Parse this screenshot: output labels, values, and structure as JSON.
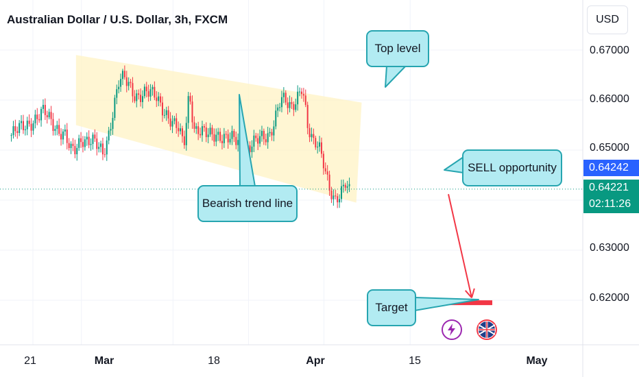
{
  "header": {
    "title": "Australian Dollar / U.S. Dollar, 3h, FXCM",
    "currency": "USD"
  },
  "price_scale": {
    "labels": [
      "0.67000",
      "0.66000",
      "0.65000",
      "0.63000",
      "0.62000"
    ],
    "last_price": "0.64242",
    "current_price": "0.64221",
    "countdown": "02:11:26",
    "colors": {
      "last_price_bg": "#2962ff",
      "current_price_bg": "#089981",
      "up": "#089981",
      "down": "#f23645"
    }
  },
  "time_scale": {
    "labels": [
      {
        "text": "21",
        "bold": false
      },
      {
        "text": "Mar",
        "bold": true
      },
      {
        "text": "18",
        "bold": false
      },
      {
        "text": "Apr",
        "bold": true
      },
      {
        "text": "15",
        "bold": false
      },
      {
        "text": "May",
        "bold": true
      }
    ]
  },
  "annotations": {
    "top_level": "Top level",
    "bearish_trend": "Bearish trend line",
    "sell": "SELL opportunity",
    "target": "Target",
    "channel_color": "#fff3c4",
    "callout_bg": "#b2ebf2",
    "callout_border": "#26a5b0",
    "arrow_color": "#f23645"
  },
  "events": [
    {
      "icon": "lightning-icon",
      "color": "#9c27b0"
    },
    {
      "icon": "australia-flag-icon",
      "color": "#f23645"
    }
  ],
  "chart_data": {
    "type": "candlestick",
    "title": "Australian Dollar / U.S. Dollar, 3h, FXCM",
    "ylim": [
      0.6125,
      0.6735
    ],
    "y_ticks": [
      0.67,
      0.66,
      0.65,
      0.63,
      0.62
    ],
    "x_ticks": [
      "21",
      "Mar",
      "18",
      "Apr",
      "15",
      "May"
    ],
    "grid": true,
    "path": [
      [
        "Feb 17",
        0.653
      ],
      [
        "Feb 19",
        0.6545
      ],
      [
        "Feb 21",
        0.656
      ],
      [
        "Feb 23",
        0.6575
      ],
      [
        "Feb 25",
        0.655
      ],
      [
        "Feb 27",
        0.653
      ],
      [
        "Feb 28",
        0.6495
      ],
      [
        "Feb 29",
        0.65
      ],
      [
        "Mar 1",
        0.6525
      ],
      [
        "Mar 3",
        0.652
      ],
      [
        "Mar 5",
        0.649
      ],
      [
        "Mar 6",
        0.653
      ],
      [
        "Mar 7",
        0.659
      ],
      [
        "Mar 8",
        0.664
      ],
      [
        "Mar 9",
        0.664
      ],
      [
        "Mar 11",
        0.661
      ],
      [
        "Mar 13",
        0.6615
      ],
      [
        "Mar 15",
        0.6605
      ],
      [
        "Mar 17",
        0.657
      ],
      [
        "Mar 18",
        0.655
      ],
      [
        "Mar 19",
        0.654
      ],
      [
        "Mar 20",
        0.651
      ],
      [
        "Mar 21",
        0.662
      ],
      [
        "Mar 22",
        0.654
      ],
      [
        "Mar 24",
        0.653
      ],
      [
        "Mar 26",
        0.6535
      ],
      [
        "Mar 28",
        0.652
      ],
      [
        "Mar 30",
        0.652
      ],
      [
        "Apr 1",
        0.6505
      ],
      [
        "Apr 3",
        0.652
      ],
      [
        "Apr 5",
        0.6535
      ],
      [
        "Apr 7",
        0.66
      ],
      [
        "Apr 9",
        0.6585
      ],
      [
        "Apr 10",
        0.661
      ],
      [
        "Apr 11",
        0.663
      ],
      [
        "Apr 12",
        0.654
      ],
      [
        "Apr 13",
        0.651
      ],
      [
        "Apr 14",
        0.6515
      ],
      [
        "Apr 15",
        0.648
      ],
      [
        "Apr 16",
        0.6425
      ],
      [
        "Apr 17",
        0.639
      ],
      [
        "Apr 18",
        0.6405
      ],
      [
        "Apr 19",
        0.644
      ],
      [
        "Apr 20",
        0.6422
      ]
    ],
    "channel": {
      "upper": [
        [
          "Feb 29",
          0.669
        ],
        [
          "Apr 22",
          0.6595
        ]
      ],
      "lower": [
        [
          "Feb 29",
          0.655
        ],
        [
          "Apr 21",
          0.6395
        ]
      ]
    },
    "target_level": 0.6195,
    "current_price": 0.64221,
    "last_price": 0.64242
  }
}
